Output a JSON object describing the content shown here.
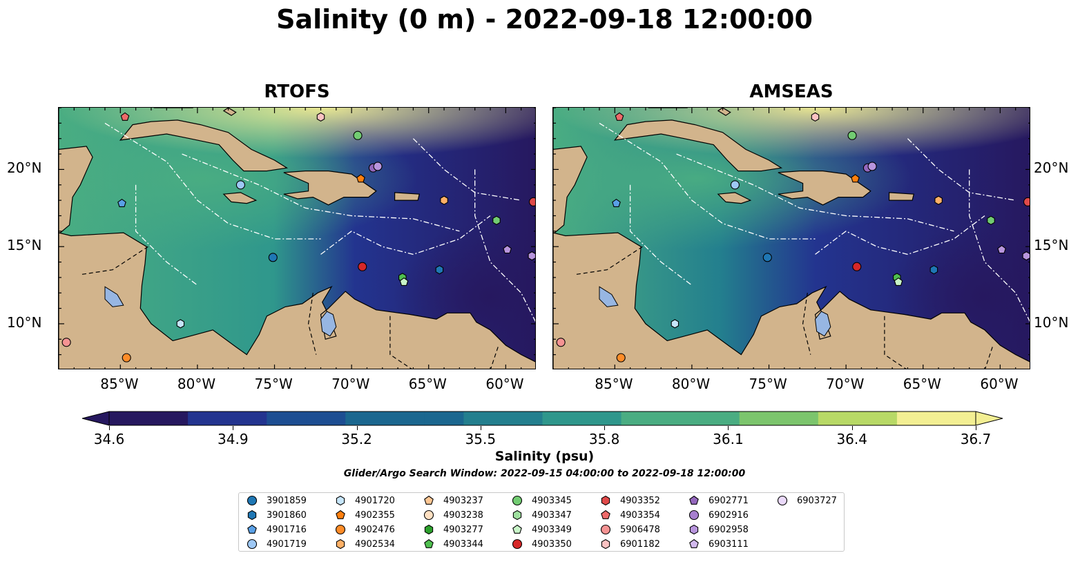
{
  "title": "Salinity (0 m) - 2022-09-18 12:00:00",
  "panels": [
    {
      "name": "RTOFS"
    },
    {
      "name": "AMSEAS"
    }
  ],
  "lon_ticks": [
    "85°W",
    "80°W",
    "75°W",
    "70°W",
    "65°W",
    "60°W"
  ],
  "lat_ticks": [
    "20°N",
    "15°N",
    "10°N"
  ],
  "map_extent": {
    "lon": [
      -89,
      -58
    ],
    "lat": [
      7,
      24
    ]
  },
  "colorbar": {
    "min": 34.6,
    "max": 36.7,
    "ticks": [
      "34.6",
      "34.9",
      "35.2",
      "35.5",
      "35.8",
      "36.1",
      "36.4",
      "36.7"
    ],
    "title": "Salinity (psu)",
    "colors": [
      "#26185f",
      "#23348f",
      "#1d4e92",
      "#1b678f",
      "#237f8e",
      "#2f978c",
      "#4aad82",
      "#7cc56d",
      "#b8d966",
      "#f3ef93"
    ]
  },
  "search_window": "Glider/Argo Search Window: 2022-09-15 04:00:00 to 2022-09-18 12:00:00",
  "floats": [
    {
      "id": "3901859",
      "color": "#1f77b4",
      "marker": "circle"
    },
    {
      "id": "3901860",
      "color": "#1f77b4",
      "marker": "hexagon"
    },
    {
      "id": "4901716",
      "color": "#5aa0e6",
      "marker": "pentagon"
    },
    {
      "id": "4901719",
      "color": "#9ec8f5",
      "marker": "circle"
    },
    {
      "id": "4901720",
      "color": "#c6e5fa",
      "marker": "hexagon"
    },
    {
      "id": "4902355",
      "color": "#ff7f0e",
      "marker": "pentagon"
    },
    {
      "id": "4902476",
      "color": "#ff8c28",
      "marker": "circle"
    },
    {
      "id": "4902534",
      "color": "#ffb066",
      "marker": "hexagon"
    },
    {
      "id": "4903237",
      "color": "#ffc794",
      "marker": "pentagon"
    },
    {
      "id": "4903238",
      "color": "#ffe0c2",
      "marker": "circle"
    },
    {
      "id": "4903277",
      "color": "#2ca02c",
      "marker": "hexagon"
    },
    {
      "id": "4903344",
      "color": "#4fbf4f",
      "marker": "pentagon"
    },
    {
      "id": "4903345",
      "color": "#72cc72",
      "marker": "circle"
    },
    {
      "id": "4903347",
      "color": "#9fe09f",
      "marker": "hexagon"
    },
    {
      "id": "4903349",
      "color": "#c8f5c8",
      "marker": "pentagon"
    },
    {
      "id": "4903350",
      "color": "#d62728",
      "marker": "circle"
    },
    {
      "id": "4903352",
      "color": "#e04a4a",
      "marker": "hexagon"
    },
    {
      "id": "4903354",
      "color": "#ee6a6a",
      "marker": "pentagon"
    },
    {
      "id": "5906478",
      "color": "#f59393",
      "marker": "circle"
    },
    {
      "id": "6901182",
      "color": "#fbc2c2",
      "marker": "hexagon"
    },
    {
      "id": "6902771",
      "color": "#9467bd",
      "marker": "pentagon"
    },
    {
      "id": "6902916",
      "color": "#a77fcf",
      "marker": "circle"
    },
    {
      "id": "6902958",
      "color": "#b895dd",
      "marker": "hexagon"
    },
    {
      "id": "6903111",
      "color": "#d2b9ee",
      "marker": "pentagon"
    },
    {
      "id": "6903727",
      "color": "#ead9fa",
      "marker": "circle"
    }
  ],
  "float_positions": [
    {
      "lon": -84.7,
      "lat": 23.4,
      "color": "#ee6a6a",
      "marker": "pentagon"
    },
    {
      "lon": -72.0,
      "lat": 23.4,
      "color": "#fbc2c2",
      "marker": "hexagon"
    },
    {
      "lon": -69.6,
      "lat": 22.2,
      "color": "#72cc72",
      "marker": "circle"
    },
    {
      "lon": -69.4,
      "lat": 19.4,
      "color": "#ff7f0e",
      "marker": "pentagon"
    },
    {
      "lon": -68.6,
      "lat": 20.1,
      "color": "#9467bd",
      "marker": "circle"
    },
    {
      "lon": -68.3,
      "lat": 20.2,
      "color": "#b895dd",
      "marker": "circle"
    },
    {
      "lon": -77.2,
      "lat": 19.0,
      "color": "#9ec8f5",
      "marker": "circle"
    },
    {
      "lon": -84.9,
      "lat": 17.8,
      "color": "#5aa0e6",
      "marker": "pentagon"
    },
    {
      "lon": -64.0,
      "lat": 18.0,
      "color": "#ffb066",
      "marker": "hexagon"
    },
    {
      "lon": -58.2,
      "lat": 17.9,
      "color": "#e04a4a",
      "marker": "circle"
    },
    {
      "lon": -60.6,
      "lat": 16.7,
      "color": "#72cc72",
      "marker": "hexagon"
    },
    {
      "lon": -59.9,
      "lat": 14.8,
      "color": "#b895dd",
      "marker": "pentagon"
    },
    {
      "lon": -58.3,
      "lat": 14.4,
      "color": "#b895dd",
      "marker": "hexagon"
    },
    {
      "lon": -75.1,
      "lat": 14.3,
      "color": "#1f77b4",
      "marker": "circle"
    },
    {
      "lon": -69.3,
      "lat": 13.7,
      "color": "#d62728",
      "marker": "circle"
    },
    {
      "lon": -64.3,
      "lat": 13.5,
      "color": "#1f77b4",
      "marker": "hexagon"
    },
    {
      "lon": -66.7,
      "lat": 13.0,
      "color": "#4fbf4f",
      "marker": "hexagon"
    },
    {
      "lon": -66.6,
      "lat": 12.7,
      "color": "#c8f5c8",
      "marker": "pentagon"
    },
    {
      "lon": -81.1,
      "lat": 10.0,
      "color": "#c6e5fa",
      "marker": "hexagon"
    },
    {
      "lon": -88.5,
      "lat": 8.8,
      "color": "#f59393",
      "marker": "circle"
    },
    {
      "lon": -84.6,
      "lat": 7.8,
      "color": "#ff8c28",
      "marker": "circle"
    }
  ]
}
